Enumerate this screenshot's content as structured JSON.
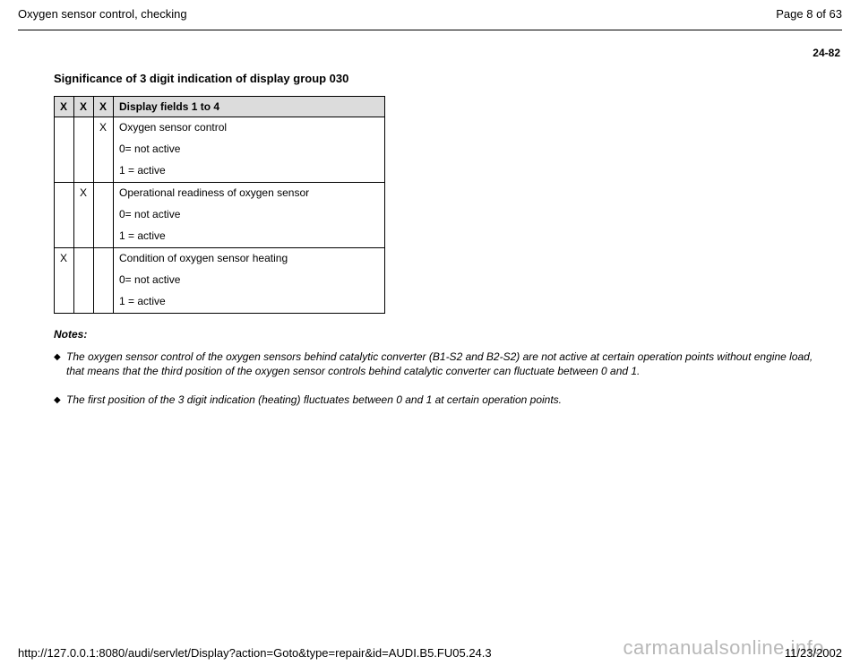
{
  "header": {
    "title": "Oxygen sensor control, checking",
    "page_label": "Page 8 of 63"
  },
  "section_number": "24-82",
  "sig_title": "Significance of 3 digit indication of display group 030",
  "table": {
    "header": {
      "c1": "X",
      "c2": "X",
      "c3": "X",
      "c4": "Display fields 1 to 4"
    },
    "rows": [
      {
        "c1": "",
        "c2": "",
        "c3": "X",
        "title": "Oxygen sensor control",
        "l1": "0= not active",
        "l2": "1 = active"
      },
      {
        "c1": "",
        "c2": "X",
        "c3": "",
        "title": "Operational readiness of oxygen sensor",
        "l1": "0= not active",
        "l2": "1 = active"
      },
      {
        "c1": "X",
        "c2": "",
        "c3": "",
        "title": "Condition of oxygen sensor heating",
        "l1": "0= not active",
        "l2": "1 = active"
      }
    ]
  },
  "notes_title": "Notes:",
  "notes": [
    "The oxygen sensor control of the oxygen sensors behind catalytic converter (B1-S2 and B2-S2) are not active at certain operation points without engine load, that means that the third position of the oxygen sensor controls behind catalytic converter can fluctuate between 0 and 1.",
    "The first position of the 3 digit indication (heating) fluctuates between 0 and 1 at certain operation points."
  ],
  "footer": {
    "url": "http://127.0.0.1:8080/audi/servlet/Display?action=Goto&type=repair&id=AUDI.B5.FU05.24.3",
    "date": "11/23/2002"
  },
  "watermark": "carmanualsonline.info"
}
